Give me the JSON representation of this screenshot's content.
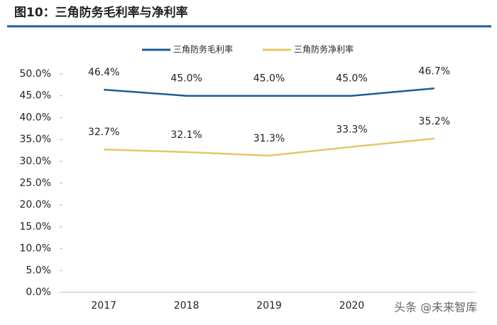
{
  "chart_data": {
    "type": "line",
    "title": "图10：三角防务毛利率与净利率",
    "categories": [
      "2017",
      "2018",
      "2019",
      "2020",
      null
    ],
    "series": [
      {
        "name": "三角防务毛利率",
        "color": "#1f5c99",
        "values": [
          46.4,
          45.0,
          45.0,
          45.0,
          46.7
        ],
        "value_labels": [
          "46.4%",
          "45.0%",
          "45.0%",
          "45.0%",
          "46.7%"
        ]
      },
      {
        "name": "三角防务净利率",
        "color": "#e6c667",
        "values": [
          32.7,
          32.1,
          31.3,
          33.3,
          35.2
        ],
        "value_labels": [
          "32.7%",
          "32.1%",
          "31.3%",
          "33.3%",
          "35.2%"
        ]
      }
    ],
    "ylim": [
      0,
      50
    ],
    "yticks": [
      {
        "value": 0,
        "label": "0.0%"
      },
      {
        "value": 5,
        "label": "5.0%"
      },
      {
        "value": 10,
        "label": "10.0%"
      },
      {
        "value": 15,
        "label": "15.0%"
      },
      {
        "value": 20,
        "label": "20.0%"
      },
      {
        "value": 25,
        "label": "25.0%"
      },
      {
        "value": 30,
        "label": "30.0%"
      },
      {
        "value": 35,
        "label": "35.0%"
      },
      {
        "value": 40,
        "label": "40.0%"
      },
      {
        "value": 45,
        "label": "45.0%"
      },
      {
        "value": 50,
        "label": "50.0%"
      }
    ],
    "legend": "top",
    "watermark": "头条 @未来智库"
  }
}
